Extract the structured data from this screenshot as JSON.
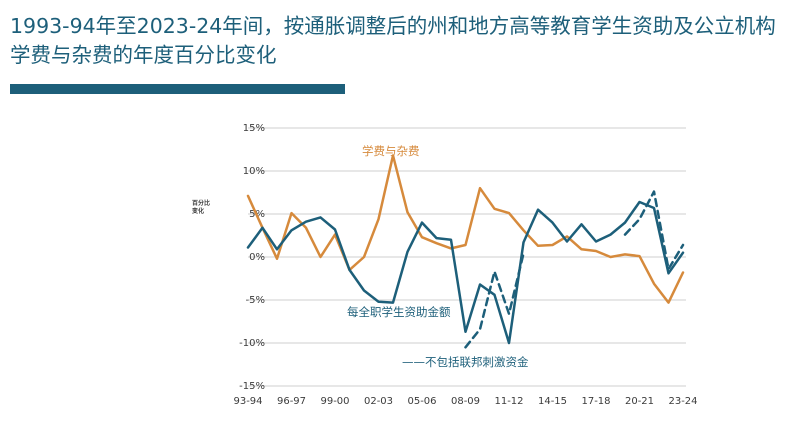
{
  "title": "1993-94年至2023-24年间，按通胀调整后的州和地方高等教育学生资助及公立机构学费与杂费的年度百分比变化",
  "colors": {
    "title": "#1d5f7a",
    "accent_bar": "#1d5f7a",
    "tuition": "#d68a3c",
    "aid": "#1d5f7a",
    "grid": "#cfcfcf",
    "axis_text": "#3b3b3b"
  },
  "chart_data": {
    "type": "line",
    "ylabel": "百分比\n变化",
    "ylim": [
      -15,
      15
    ],
    "yticks": [
      -15,
      -10,
      -5,
      0,
      5,
      10,
      15
    ],
    "ytick_labels": [
      "-15%",
      "-10%",
      "-5%",
      "0%",
      "5%",
      "10%",
      "15%"
    ],
    "x": [
      "93-94",
      "94-95",
      "95-96",
      "96-97",
      "97-98",
      "98-99",
      "99-00",
      "00-01",
      "01-02",
      "02-03",
      "03-04",
      "04-05",
      "05-06",
      "06-07",
      "07-08",
      "08-09",
      "09-10",
      "10-11",
      "11-12",
      "12-13",
      "13-14",
      "14-15",
      "15-16",
      "16-17",
      "17-18",
      "18-19",
      "19-20",
      "20-21",
      "21-22",
      "22-23",
      "23-24"
    ],
    "xtick_labels": [
      "93-94",
      "96-97",
      "99-00",
      "02-03",
      "05-06",
      "08-09",
      "11-12",
      "14-15",
      "17-18",
      "20-21",
      "23-24"
    ],
    "grid": true,
    "series": [
      {
        "name": "学费与杂费",
        "style": "solid",
        "color": "#d68a3c",
        "values": [
          7.1,
          3.4,
          -0.2,
          5.1,
          3.4,
          0.0,
          2.6,
          -1.5,
          0.0,
          4.4,
          11.8,
          5.2,
          2.3,
          1.6,
          1.0,
          1.4,
          8.0,
          5.6,
          5.1,
          3.1,
          1.3,
          1.4,
          2.4,
          0.9,
          0.7,
          0.0,
          0.3,
          0.1,
          -3.1,
          -5.3,
          -1.8
        ]
      },
      {
        "name": "每全职学生资助金额",
        "style": "solid",
        "color": "#1d5f7a",
        "values": [
          1.1,
          3.4,
          0.9,
          3.1,
          4.1,
          4.6,
          3.2,
          -1.5,
          -3.9,
          -5.2,
          -5.3,
          0.6,
          4.0,
          2.2,
          2.0,
          -8.7,
          -3.2,
          -4.4,
          -10.0,
          1.7,
          5.5,
          4.0,
          1.8,
          3.8,
          1.8,
          2.6,
          4.0,
          6.4,
          5.7,
          -1.9,
          0.5
        ]
      },
      {
        "name": "不包括联邦刺激资金",
        "style": "dashed",
        "color": "#1d5f7a",
        "values": [
          null,
          null,
          null,
          null,
          null,
          null,
          null,
          null,
          null,
          null,
          null,
          null,
          null,
          null,
          null,
          -10.5,
          -8.4,
          -1.7,
          -6.6,
          0.4,
          null,
          null,
          null,
          null,
          null,
          null,
          2.6,
          4.4,
          7.6,
          -1.4,
          1.4
        ]
      }
    ],
    "annotations": [
      {
        "series": 0,
        "text": "学费与杂费"
      },
      {
        "series": 1,
        "text": "每全职学生资助金额"
      },
      {
        "series": 2,
        "text": "——不包括联邦刺激资金"
      }
    ]
  }
}
